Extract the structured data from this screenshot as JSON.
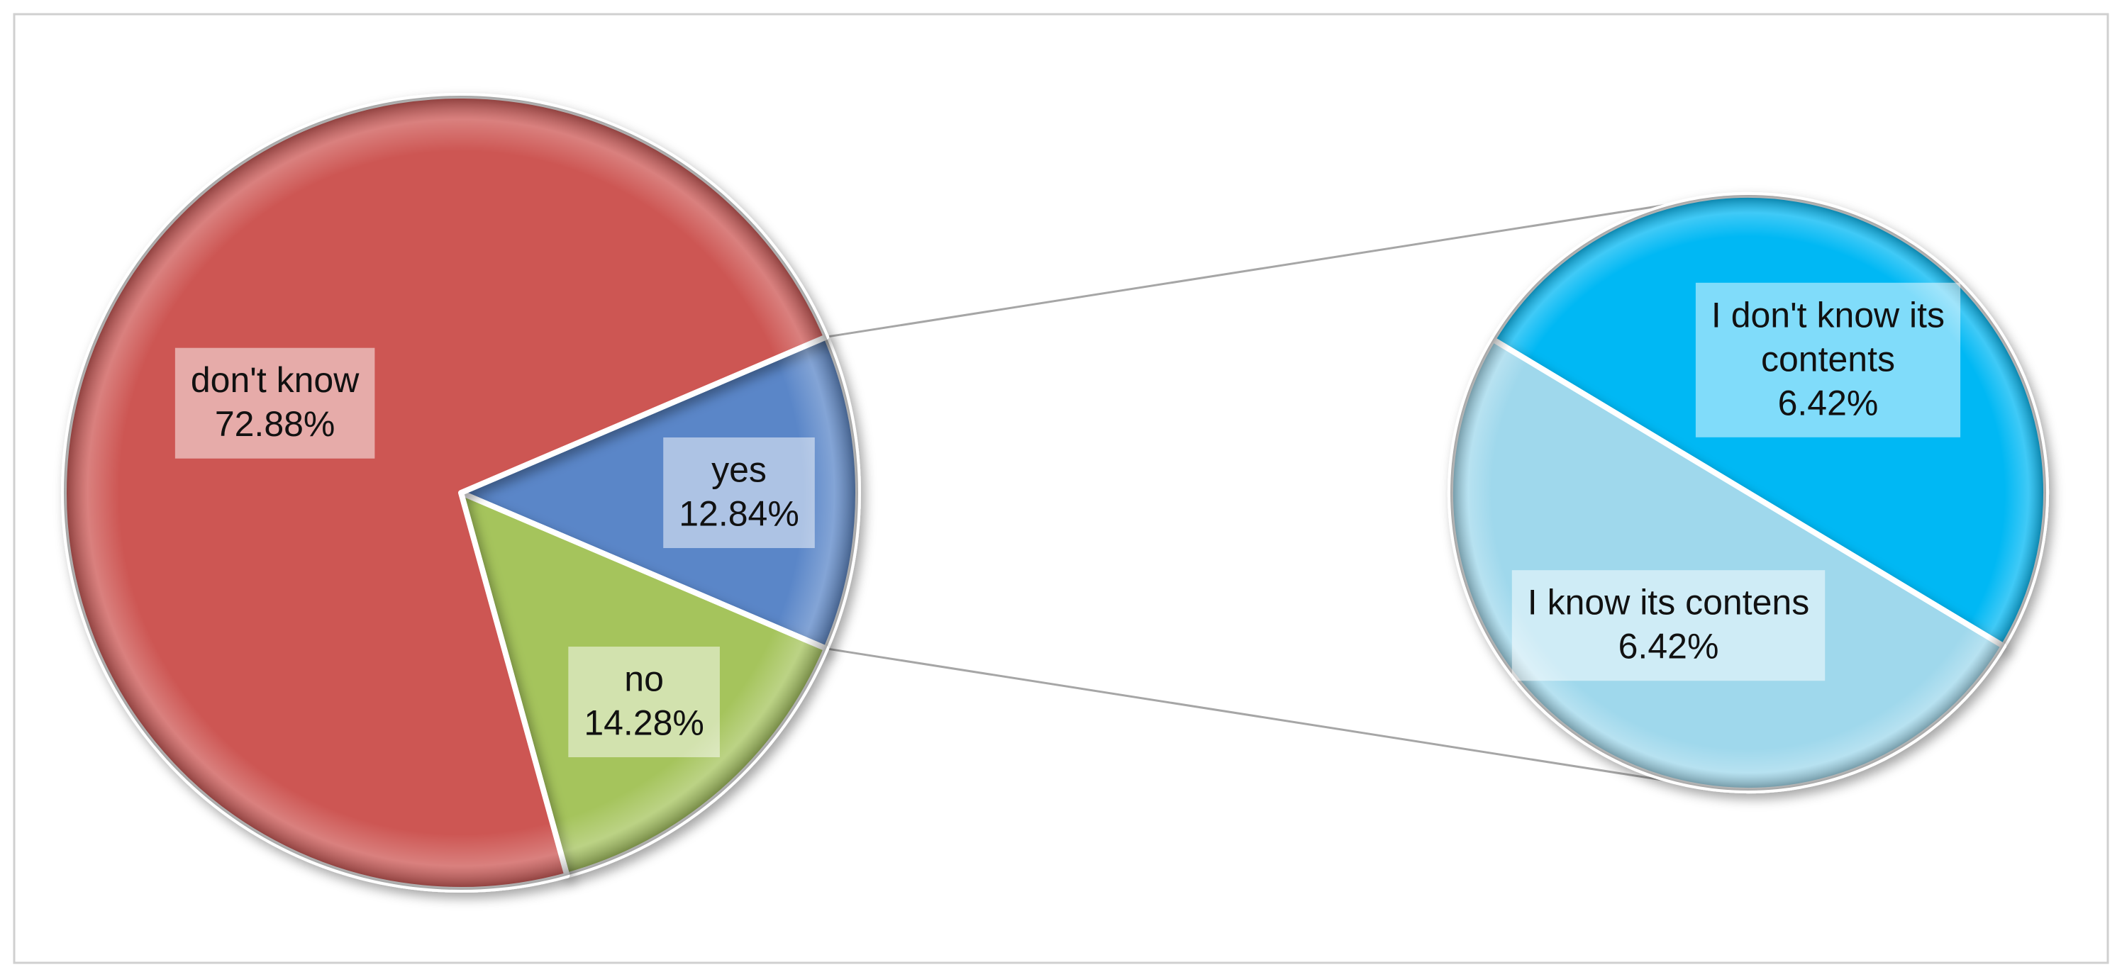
{
  "chart_data": {
    "type": "pie",
    "subtype": "pie-of-pie",
    "title": "",
    "main_pie": {
      "slices": [
        {
          "label": "yes",
          "value": 12.84,
          "value_text": "12.84%",
          "color": "#5a86c8"
        },
        {
          "label": "no",
          "value": 14.28,
          "value_text": "14.28%",
          "color": "#a5c45c"
        },
        {
          "label": "don't know",
          "value": 72.88,
          "value_text": "72.88%",
          "color": "#cd5652"
        }
      ]
    },
    "secondary_pie": {
      "breakdown_of": "yes",
      "slices": [
        {
          "label": "I don't know its contents",
          "label_lines": [
            "I don't know its",
            "contents"
          ],
          "value": 6.42,
          "value_text": "6.42%",
          "color": "#00b8f4"
        },
        {
          "label": "I know its contens",
          "label_lines": [
            "I know its contens"
          ],
          "value": 6.42,
          "value_text": "6.42%",
          "color": "#9fd8ec"
        }
      ]
    },
    "legend": "none",
    "grid": false,
    "data_labels": "inside"
  }
}
